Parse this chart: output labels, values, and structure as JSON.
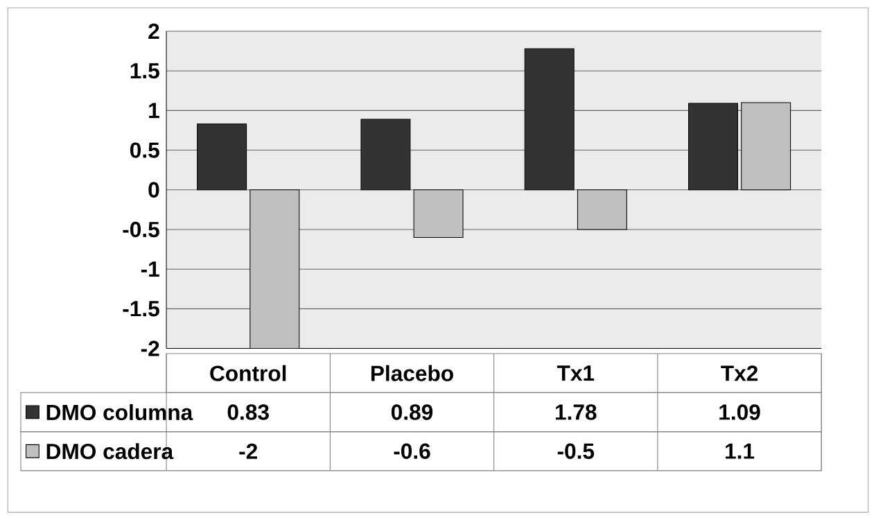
{
  "chart_data": {
    "type": "bar",
    "categories": [
      "Control",
      "Placebo",
      "Tx1",
      "Tx2"
    ],
    "series": [
      {
        "name": "DMO columna",
        "color": "#333333",
        "values": [
          0.83,
          0.89,
          1.78,
          1.09
        ]
      },
      {
        "name": "DMO cadera",
        "color": "#c0c0c0",
        "values": [
          -2,
          -0.6,
          -0.5,
          1.1
        ]
      }
    ],
    "ylim": [
      -2,
      2
    ],
    "yticks": [
      -2,
      -1.5,
      -1,
      -0.5,
      0,
      0.5,
      1,
      1.5,
      2
    ],
    "grid": "y",
    "legend": "bottom",
    "data_labels": true
  }
}
